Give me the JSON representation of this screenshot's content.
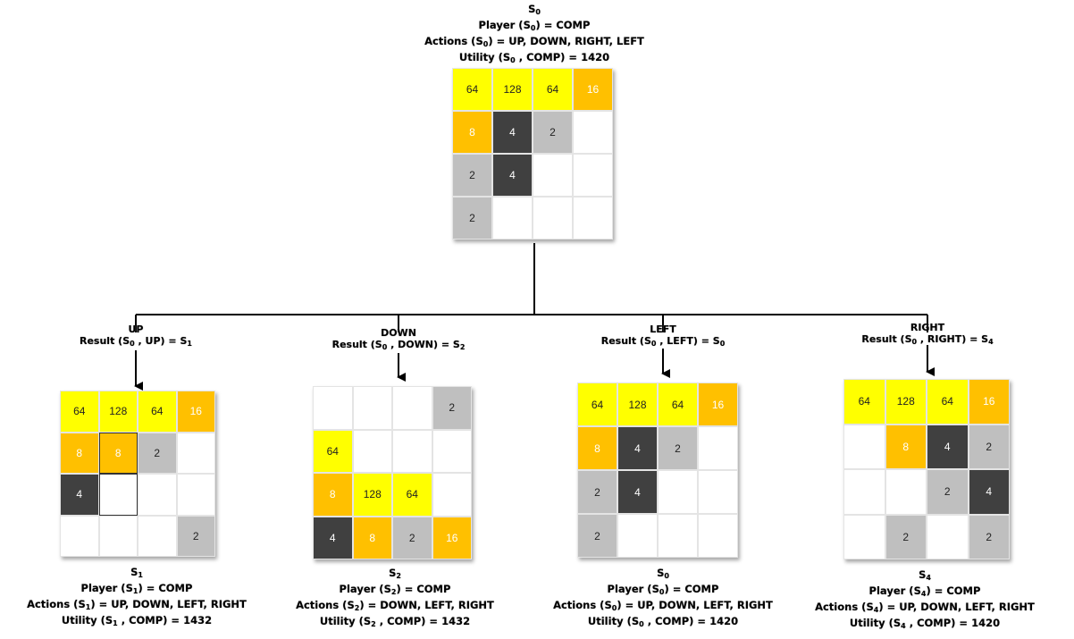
{
  "tile_colors": {
    "2": {
      "bg": "#bfbfbf",
      "fg": "#222222"
    },
    "4": {
      "bg": "#404040",
      "fg": "#ffffff"
    },
    "8": {
      "bg": "#ffc000",
      "fg": "#ffffff"
    },
    "16": {
      "bg": "#ffc000",
      "fg": "#ffffff"
    },
    "64": {
      "bg": "#ffff00",
      "fg": "#222222"
    },
    "128": {
      "bg": "#ffff00",
      "fg": "#222222"
    }
  },
  "root": {
    "state": "S0",
    "lines": {
      "title": "S0",
      "player": "Player (S0) = COMP",
      "actions": "Actions (S0) = UP, DOWN, RIGHT, LEFT",
      "utility": "Utility (S0 , COMP) = 1420"
    },
    "board": [
      [
        "64",
        "128",
        "64",
        "16"
      ],
      [
        "8",
        "4",
        "2",
        ""
      ],
      [
        "2",
        "4",
        "",
        ""
      ],
      [
        "2",
        "",
        "",
        ""
      ]
    ]
  },
  "children": [
    {
      "action": "UP",
      "result": "Result (S0 , UP) = S1",
      "lines": {
        "title": "S1",
        "player": "Player (S1) = COMP",
        "actions": "Actions (S1) = UP, DOWN, LEFT, RIGHT",
        "utility": "Utility (S1 , COMP) = 1432"
      },
      "board": [
        [
          "64",
          "128",
          "64",
          "16"
        ],
        [
          "8",
          "8",
          "2",
          ""
        ],
        [
          "4",
          "",
          "",
          ""
        ],
        [
          "",
          "",
          "",
          "2"
        ]
      ]
    },
    {
      "action": "DOWN",
      "result": "Result (S0 , DOWN) = S2",
      "lines": {
        "title": "S2",
        "player": "Player (S2) = COMP",
        "actions": "Actions (S2) = DOWN, LEFT, RIGHT",
        "utility": "Utility (S2 , COMP) = 1432"
      },
      "board": [
        [
          "",
          "",
          "",
          "2"
        ],
        [
          "64",
          "",
          "",
          ""
        ],
        [
          "8",
          "128",
          "64",
          ""
        ],
        [
          "4",
          "8",
          "2",
          "16"
        ]
      ]
    },
    {
      "action": "LEFT",
      "result": "Result (S0 , LEFT) = S0",
      "lines": {
        "title": "S0",
        "player": "Player (S0) = COMP",
        "actions": "Actions (S0) = UP, DOWN, LEFT, RIGHT",
        "utility": "Utility (S0 , COMP) = 1420"
      },
      "board": [
        [
          "64",
          "128",
          "64",
          "16"
        ],
        [
          "8",
          "4",
          "2",
          ""
        ],
        [
          "2",
          "4",
          "",
          ""
        ],
        [
          "2",
          "",
          "",
          ""
        ]
      ]
    },
    {
      "action": "RIGHT",
      "result": "Result (S0 , RIGHT) = S4",
      "lines": {
        "title": "S4",
        "player": "Player (S4) = COMP",
        "actions": "Actions (S4) = UP, DOWN, LEFT, RIGHT",
        "utility": "Utility (S4 , COMP) = 1420"
      },
      "board": [
        [
          "64",
          "128",
          "64",
          "16"
        ],
        [
          "",
          "8",
          "4",
          "2"
        ],
        [
          "",
          "",
          "2",
          "4"
        ],
        [
          "",
          "2",
          "",
          "2"
        ]
      ]
    }
  ]
}
